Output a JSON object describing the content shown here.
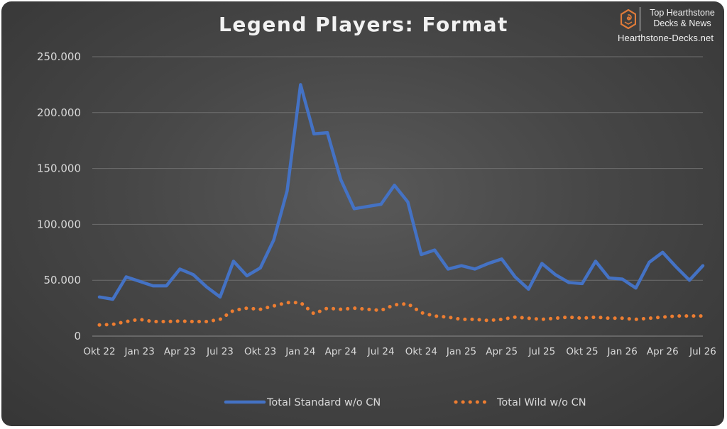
{
  "brand": {
    "line1": "Top Hearthstone",
    "line2": "Decks & News",
    "url": "Hearthstone-Decks.net",
    "logo_icon": "hexagon-swirl-icon",
    "accent": "#e07b39"
  },
  "chart_data": {
    "type": "line",
    "title": "Legend Players: Format",
    "xlabel": "",
    "ylabel": "",
    "ylim": [
      0,
      250000
    ],
    "ytick_values": [
      0,
      50000,
      100000,
      150000,
      200000,
      250000
    ],
    "ytick_labels": [
      "0",
      "50.000",
      "100.000",
      "150.000",
      "200.000",
      "250.000"
    ],
    "x": [
      "Okt 22",
      "Nov 22",
      "Dez 22",
      "Jan 23",
      "Feb 23",
      "Mär 23",
      "Apr 23",
      "Mai 23",
      "Jun 23",
      "Jul 23",
      "Aug 23",
      "Sep 23",
      "Okt 23",
      "Nov 23",
      "Dez 23",
      "Jan 24",
      "Feb 24",
      "Mär 24",
      "Apr 24",
      "Mai 24",
      "Jun 24",
      "Jul 24",
      "Aug 24",
      "Sep 24",
      "Okt 24",
      "Nov 24",
      "Dez 24",
      "Jan 25",
      "Feb 25",
      "Mär 25",
      "Apr 25",
      "Mai 25",
      "Jun 25",
      "Jul 25",
      "Aug 25",
      "Sep 25",
      "Okt 25",
      "Nov 25",
      "Dez 25",
      "Jan 26",
      "Feb 26",
      "Mär 26",
      "Apr 26",
      "Mai 26",
      "Jun 26",
      "Jul 26"
    ],
    "xtick_labels": [
      "Okt 22",
      "Jan 23",
      "Apr 23",
      "Jul 23",
      "Okt 23",
      "Jan 24",
      "Apr 24",
      "Jul 24",
      "Okt 24",
      "Jan 25",
      "Apr 25",
      "Jul 25",
      "Okt 25",
      "Jan 26",
      "Apr 26",
      "Jul 26"
    ],
    "grid": true,
    "legend_position": "bottom",
    "series": [
      {
        "name": "Total Standard w/o CN",
        "color": "#4472c4",
        "style": "solid",
        "values": [
          35000,
          33000,
          53000,
          49000,
          45000,
          45000,
          60000,
          55000,
          44000,
          35000,
          67000,
          54000,
          61000,
          86000,
          130000,
          225000,
          181000,
          182000,
          140000,
          114000,
          116000,
          118000,
          135000,
          120000,
          73000,
          77000,
          60000,
          63000,
          60000,
          65000,
          69000,
          53000,
          42000,
          65000,
          55000,
          48000,
          47000,
          67000,
          52000,
          51000,
          43000,
          66000,
          75000,
          62000,
          50000,
          63000
        ]
      },
      {
        "name": "Total Wild w/o CN",
        "color": "#ed7d31",
        "style": "dotted",
        "values": [
          10000,
          10500,
          13000,
          15000,
          13000,
          13000,
          13500,
          13000,
          13000,
          15000,
          23000,
          25000,
          24000,
          27000,
          30000,
          30000,
          20000,
          25000,
          24000,
          25000,
          24000,
          23000,
          28000,
          29000,
          21000,
          18000,
          17000,
          15000,
          15000,
          14000,
          15000,
          17000,
          16000,
          15000,
          16000,
          17000,
          16000,
          17000,
          16000,
          16000,
          15000,
          16000,
          17000,
          18000,
          18000,
          18000
        ]
      }
    ]
  }
}
